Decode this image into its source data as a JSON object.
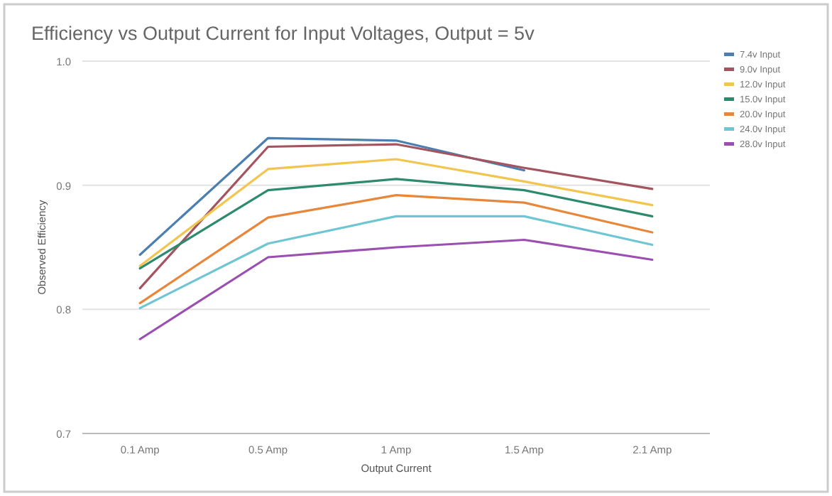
{
  "chart_data": {
    "type": "line",
    "title": "Efficiency vs Output Current for Input Voltages, Output = 5v",
    "xlabel": "Output Current",
    "ylabel": "Observed Efficiency",
    "categories": [
      "0.1 Amp",
      "0.5 Amp",
      "1 Amp",
      "1.5 Amp",
      "2.1 Amp"
    ],
    "ylim": [
      0.7,
      1.0
    ],
    "yticks": [
      0.7,
      0.8,
      0.9,
      {
        "value": 1.0,
        "label": "1.0"
      }
    ],
    "grid": "y",
    "legend": "top right",
    "marker": "none",
    "series": [
      {
        "name": "7.4v Input",
        "color": "#4a7fb0",
        "values": [
          0.844,
          0.938,
          0.936,
          0.912,
          null
        ]
      },
      {
        "name": "9.0v Input",
        "color": "#a4545e",
        "values": [
          0.817,
          0.931,
          0.933,
          0.914,
          0.897
        ]
      },
      {
        "name": "12.0v Input",
        "color": "#f2c54e",
        "values": [
          0.835,
          0.913,
          0.921,
          0.903,
          0.884
        ]
      },
      {
        "name": "15.0v Input",
        "color": "#2e8a6e",
        "values": [
          0.833,
          0.896,
          0.905,
          0.896,
          0.875
        ]
      },
      {
        "name": "20.0v Input",
        "color": "#e8863a",
        "values": [
          0.805,
          0.874,
          0.892,
          0.886,
          0.862
        ]
      },
      {
        "name": "24.0v Input",
        "color": "#6ec6d3",
        "values": [
          0.801,
          0.853,
          0.875,
          0.875,
          0.852
        ]
      },
      {
        "name": "28.0v Input",
        "color": "#9b4fb0",
        "values": [
          0.776,
          0.842,
          0.85,
          0.856,
          0.84
        ]
      }
    ]
  }
}
